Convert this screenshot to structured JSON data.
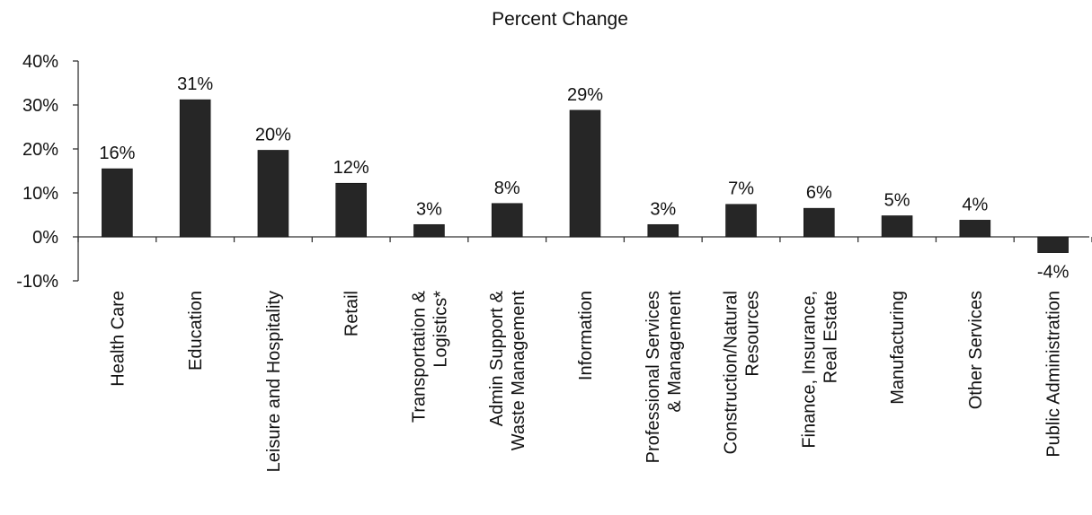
{
  "chart_data": {
    "type": "bar",
    "title": "Percent Change",
    "xlabel": "",
    "ylabel": "",
    "ylim": [
      -10,
      40
    ],
    "y_ticks": [
      "-10%",
      "0%",
      "10%",
      "20%",
      "30%",
      "40%"
    ],
    "y_tick_values": [
      -10,
      0,
      10,
      20,
      30,
      40
    ],
    "grid": false,
    "legend": "none",
    "bar_color": "#262626",
    "categories": [
      "Health Care",
      "Education",
      "Leisure and Hospitality",
      "Retail",
      "Transportation & Logistics*",
      "Admin Support & Waste Management",
      "Information",
      "Professional Services & Management",
      "Construction/Natural Resources",
      "Finance, Insurance, Real Estate",
      "Manufacturing",
      "Other Services",
      "Public Administration"
    ],
    "category_lines": [
      [
        "Health Care"
      ],
      [
        "Education"
      ],
      [
        "Leisure and Hospitality"
      ],
      [
        "Retail"
      ],
      [
        "Transportation &",
        "Logistics*"
      ],
      [
        "Admin Support &",
        "Waste Management"
      ],
      [
        "Information"
      ],
      [
        "Professional Services",
        "& Management"
      ],
      [
        "Construction/Natural",
        "Resources"
      ],
      [
        "Finance, Insurance,",
        "Real Estate"
      ],
      [
        "Manufacturing"
      ],
      [
        "Other Services"
      ],
      [
        "Public Administration"
      ]
    ],
    "values": [
      15.5,
      31.2,
      19.7,
      12.2,
      2.8,
      7.6,
      28.8,
      2.8,
      7.4,
      6.5,
      4.8,
      3.8,
      -3.6
    ],
    "data_labels": [
      "16%",
      "31%",
      "20%",
      "12%",
      "3%",
      "8%",
      "29%",
      "3%",
      "7%",
      "6%",
      "5%",
      "4%",
      "-4%"
    ]
  }
}
